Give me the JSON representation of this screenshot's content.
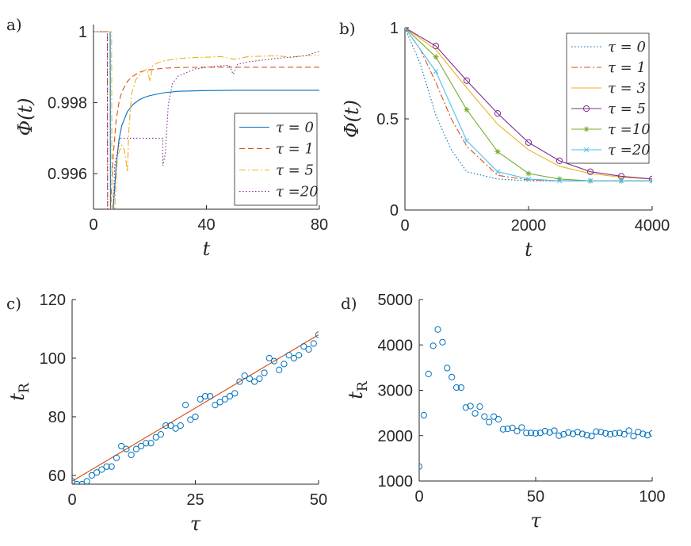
{
  "colors": {
    "c0": "#0072bd",
    "c1": "#d95319",
    "c2": "#edb120",
    "c3": "#7e2f8e",
    "c4": "#77ac30",
    "c5": "#4dbeee",
    "c6": "#a2142f",
    "axis": "#262626"
  },
  "chart_data": [
    {
      "type": "line",
      "panel_label": "a)",
      "xlabel": "t",
      "ylabel": "Φ(t)",
      "xlim": [
        0,
        80
      ],
      "ylim": [
        0.995,
        1.0002
      ],
      "xticks": [
        0,
        40,
        80
      ],
      "xtick_labels": [
        "0",
        "40",
        "80"
      ],
      "yticks": [
        0.996,
        0.998,
        1
      ],
      "ytick_labels": [
        "0.996",
        "0.998",
        "1"
      ],
      "legend": "bottom-right",
      "series": [
        {
          "name": "τ = 0",
          "color_key": "c0",
          "style": "solid",
          "x": [
            0,
            5.9,
            6,
            7,
            8,
            9,
            10,
            12,
            14,
            16,
            18,
            20,
            25,
            30,
            40,
            50,
            60,
            70,
            80
          ],
          "y": [
            1,
            1,
            0.995,
            0.995,
            0.9962,
            0.99695,
            0.99735,
            0.99775,
            0.99795,
            0.99807,
            0.99815,
            0.9982,
            0.99828,
            0.99832,
            0.99834,
            0.99835,
            0.99835,
            0.99835,
            0.99835
          ]
        },
        {
          "name": "τ = 1",
          "color_key": "c1",
          "style": "dashed",
          "x": [
            0,
            4.9,
            5,
            6,
            7,
            8,
            9,
            10,
            12,
            14,
            16,
            18,
            20,
            25,
            30,
            40,
            50,
            60,
            80
          ],
          "y": [
            1,
            1,
            0.995,
            0.995,
            0.9965,
            0.9975,
            0.998,
            0.9983,
            0.9986,
            0.99875,
            0.99885,
            0.9989,
            0.99893,
            0.99897,
            0.99899,
            0.999,
            0.999,
            0.999,
            0.999
          ]
        },
        {
          "name": "τ = 5",
          "color_key": "c2",
          "style": "dashdot",
          "x": [
            0,
            6.4,
            6.5,
            7.5,
            8.5,
            10,
            11,
            12,
            12.5,
            13.5,
            15,
            17,
            19,
            20,
            21,
            23,
            25,
            30,
            35,
            40,
            45,
            50,
            55,
            60,
            65,
            70,
            75,
            80
          ],
          "y": [
            1,
            1,
            0.995,
            0.995,
            0.9965,
            0.9968,
            0.99665,
            0.99605,
            0.9972,
            0.99825,
            0.99865,
            0.99885,
            0.99895,
            0.9986,
            0.99905,
            0.99913,
            0.99918,
            0.99924,
            0.99927,
            0.99928,
            0.9993,
            0.99922,
            0.9993,
            0.99931,
            0.99932,
            0.99928,
            0.99933,
            0.99933
          ]
        },
        {
          "name": "τ =20",
          "color_key": "c3",
          "style": "dotted",
          "x": [
            0,
            4.9,
            5,
            6,
            7,
            7.5,
            8,
            8.5,
            9,
            9.2,
            15,
            20,
            24.5,
            24.6,
            25.5,
            26,
            26.5,
            28,
            30,
            33,
            36,
            40,
            44,
            48,
            49.5,
            51,
            55,
            60,
            65,
            70,
            75,
            80
          ],
          "y": [
            1,
            1,
            0.995,
            0.995,
            0.995,
            0.9962,
            0.99645,
            0.9966,
            0.9968,
            0.997,
            0.997,
            0.997,
            0.997,
            0.99622,
            0.9966,
            0.9973,
            0.99795,
            0.99855,
            0.99875,
            0.99885,
            0.99895,
            0.999,
            0.99903,
            0.99905,
            0.9988,
            0.99908,
            0.99915,
            0.9992,
            0.99925,
            0.99928,
            0.99932,
            0.99945
          ]
        }
      ]
    },
    {
      "type": "line",
      "panel_label": "b)",
      "xlabel": "t",
      "ylabel": "Φ(t)",
      "xlim": [
        0,
        4000
      ],
      "ylim": [
        0,
        1
      ],
      "xticks": [
        0,
        2000,
        4000
      ],
      "xtick_labels": [
        "0",
        "2000",
        "4000"
      ],
      "yticks": [
        0,
        0.5,
        1
      ],
      "ytick_labels": [
        "0",
        "0.5",
        "1"
      ],
      "legend": "top-right",
      "series": [
        {
          "name": "τ = 0",
          "color_key": "c0",
          "style": "dotted",
          "marker": "none",
          "x": [
            0,
            250,
            500,
            750,
            1000,
            1500,
            2000,
            2500,
            3000,
            3500,
            4000
          ],
          "y": [
            1,
            0.8,
            0.52,
            0.33,
            0.21,
            0.17,
            0.16,
            0.16,
            0.16,
            0.16,
            0.16
          ]
        },
        {
          "name": "τ = 1",
          "color_key": "c1",
          "style": "dashdot",
          "marker": "none",
          "x": [
            0,
            250,
            500,
            750,
            1000,
            1500,
            2000,
            2500,
            3000,
            3500,
            4000
          ],
          "y": [
            1,
            0.88,
            0.7,
            0.5,
            0.35,
            0.19,
            0.165,
            0.16,
            0.16,
            0.16,
            0.16
          ]
        },
        {
          "name": "τ = 3",
          "color_key": "c2",
          "style": "solid",
          "marker": "none",
          "x": [
            0,
            500,
            1000,
            1500,
            2000,
            2500,
            3000,
            3500,
            4000
          ],
          "y": [
            1,
            0.88,
            0.67,
            0.47,
            0.33,
            0.24,
            0.2,
            0.18,
            0.17
          ]
        },
        {
          "name": "τ = 5",
          "color_key": "c3",
          "style": "solid",
          "marker": "circle",
          "x": [
            0,
            500,
            1000,
            1500,
            2000,
            2500,
            3000,
            3500,
            4000
          ],
          "y": [
            1,
            0.9,
            0.71,
            0.53,
            0.37,
            0.27,
            0.21,
            0.185,
            0.17
          ]
        },
        {
          "name": "τ =10",
          "color_key": "c4",
          "style": "solid",
          "marker": "star",
          "x": [
            0,
            500,
            1000,
            1500,
            2000,
            2500,
            3000,
            3500,
            4000
          ],
          "y": [
            1,
            0.84,
            0.55,
            0.32,
            0.2,
            0.17,
            0.16,
            0.16,
            0.16
          ]
        },
        {
          "name": "τ =20",
          "color_key": "c5",
          "style": "solid",
          "marker": "x",
          "x": [
            0,
            500,
            1000,
            1500,
            2000,
            2500,
            3000,
            3500,
            4000
          ],
          "y": [
            1,
            0.76,
            0.38,
            0.21,
            0.17,
            0.16,
            0.16,
            0.16,
            0.16
          ]
        }
      ]
    },
    {
      "type": "scatter",
      "panel_label": "c)",
      "xlabel": "τ",
      "ylabel": "tR",
      "xlim": [
        0,
        50
      ],
      "ylim": [
        57,
        120
      ],
      "xticks": [
        0,
        25,
        50
      ],
      "xtick_labels": [
        "0",
        "25",
        "50"
      ],
      "yticks": [
        60,
        80,
        100,
        120
      ],
      "ytick_labels": [
        "60",
        "80",
        "100",
        "120"
      ],
      "legend": "none",
      "fit_line": {
        "x": [
          0,
          50
        ],
        "y": [
          58,
          108
        ],
        "color_key": "c1"
      },
      "series": [
        {
          "color_key": "c0",
          "marker": "circle",
          "x": [
            0,
            1,
            2,
            3,
            4,
            5,
            6,
            7,
            8,
            9,
            10,
            11,
            12,
            13,
            14,
            15,
            16,
            17,
            18,
            19,
            20,
            21,
            22,
            23,
            24,
            25,
            26,
            27,
            28,
            29,
            30,
            31,
            32,
            33,
            34,
            35,
            36,
            37,
            38,
            39,
            40,
            41,
            42,
            43,
            44,
            45,
            46,
            47,
            48,
            49,
            50
          ],
          "y": [
            58,
            57,
            57,
            58,
            60,
            61,
            62,
            63,
            63,
            66,
            70,
            69,
            67,
            69,
            70,
            71,
            71,
            73,
            74,
            77,
            77,
            76,
            77,
            84,
            79,
            80,
            86,
            87,
            87,
            84,
            85,
            86,
            87,
            88,
            92,
            94,
            93,
            92,
            93,
            95,
            100,
            99,
            96,
            98,
            101,
            100,
            101,
            104,
            103,
            105,
            108
          ]
        }
      ]
    },
    {
      "type": "scatter",
      "panel_label": "d)",
      "xlabel": "τ",
      "ylabel": "tR",
      "xlim": [
        0,
        100
      ],
      "ylim": [
        1000,
        5000
      ],
      "xticks": [
        0,
        50,
        100
      ],
      "xtick_labels": [
        "0",
        "50",
        "100"
      ],
      "yticks": [
        1000,
        2000,
        3000,
        4000,
        5000
      ],
      "ytick_labels": [
        "1000",
        "2000",
        "3000",
        "4000",
        "5000"
      ],
      "legend": "none",
      "series": [
        {
          "color_key": "c0",
          "marker": "circle",
          "x": [
            0,
            2,
            4,
            6,
            8,
            10,
            12,
            14,
            16,
            18,
            20,
            22,
            24,
            26,
            28,
            30,
            32,
            34,
            36,
            38,
            40,
            42,
            44,
            46,
            48,
            50,
            52,
            54,
            56,
            58,
            60,
            62,
            64,
            66,
            68,
            70,
            72,
            74,
            76,
            78,
            80,
            82,
            84,
            86,
            88,
            90,
            92,
            94,
            96,
            98,
            100
          ],
          "y": [
            1320,
            2450,
            3360,
            3980,
            4340,
            4060,
            3490,
            3290,
            3060,
            3060,
            2620,
            2650,
            2490,
            2640,
            2420,
            2300,
            2420,
            2360,
            2140,
            2150,
            2170,
            2100,
            2180,
            2060,
            2060,
            2050,
            2060,
            2100,
            2070,
            2110,
            2000,
            2030,
            2070,
            2040,
            2080,
            2040,
            2010,
            1990,
            2090,
            2080,
            2050,
            2030,
            2050,
            2060,
            2030,
            2110,
            1990,
            2080,
            2040,
            2010,
            2050
          ]
        }
      ]
    }
  ]
}
